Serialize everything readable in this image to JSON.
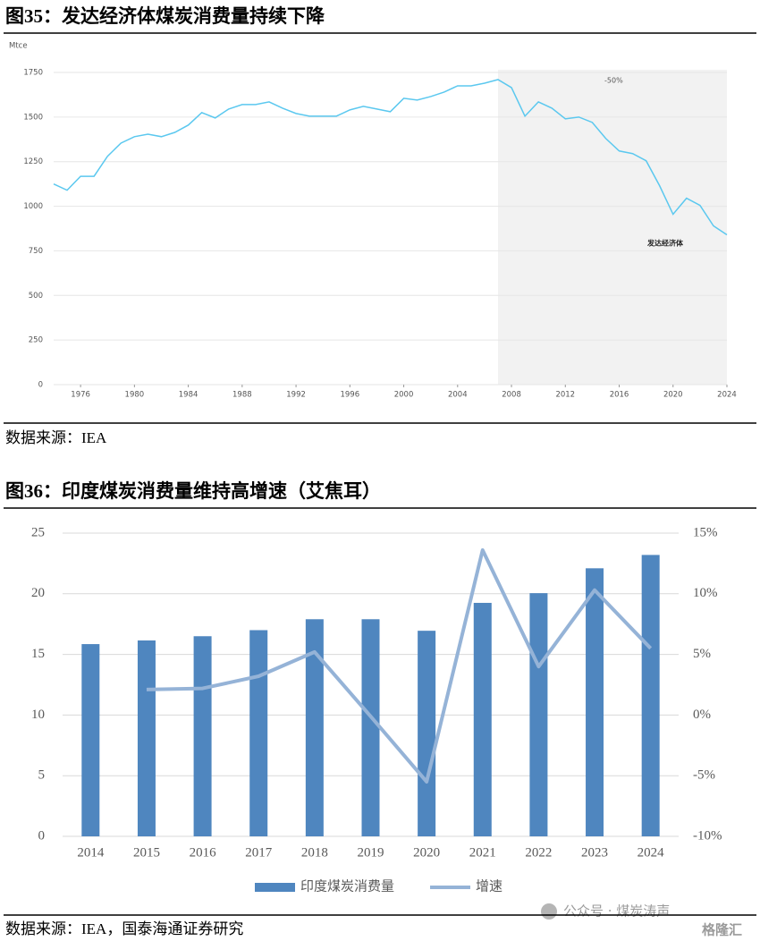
{
  "chart_data": [
    {
      "type": "line",
      "title": "图35：发达经济体煤炭消费量持续下降",
      "y_unit": "Mtce",
      "source": "数据来源：IEA",
      "annotations": [
        "-50%",
        "发达经济体"
      ],
      "color": "#5bc8ef",
      "shade_color": "#f2f2f2",
      "shaded_xrange": [
        2007,
        2024
      ],
      "grid": true,
      "x": [
        1974,
        1975,
        1976,
        1977,
        1978,
        1979,
        1980,
        1981,
        1982,
        1983,
        1984,
        1985,
        1986,
        1987,
        1988,
        1989,
        1990,
        1991,
        1992,
        1993,
        1994,
        1995,
        1996,
        1997,
        1998,
        1999,
        2000,
        2001,
        2002,
        2003,
        2004,
        2005,
        2006,
        2007,
        2008,
        2009,
        2010,
        2011,
        2012,
        2013,
        2014,
        2015,
        2016,
        2017,
        2018,
        2019,
        2020,
        2021,
        2022,
        2023,
        2024
      ],
      "values": [
        1125,
        1090,
        1168,
        1168,
        1280,
        1354,
        1390,
        1404,
        1390,
        1414,
        1455,
        1525,
        1495,
        1545,
        1570,
        1570,
        1585,
        1550,
        1520,
        1505,
        1505,
        1505,
        1540,
        1560,
        1545,
        1530,
        1605,
        1595,
        1615,
        1640,
        1675,
        1675,
        1690,
        1710,
        1665,
        1505,
        1585,
        1550,
        1490,
        1500,
        1470,
        1380,
        1310,
        1295,
        1255,
        1115,
        955,
        1045,
        1005,
        890,
        840
      ],
      "xlim": [
        1974,
        2024
      ],
      "xticks": [
        1976,
        1980,
        1984,
        1988,
        1992,
        1996,
        2000,
        2004,
        2008,
        2012,
        2016,
        2020,
        2024
      ],
      "ylim": [
        0,
        1750
      ],
      "yticks": [
        0,
        250,
        500,
        750,
        1000,
        1250,
        1500,
        1750
      ]
    },
    {
      "type": "combo",
      "title": "图36：印度煤炭消费量维持高增速（艾焦耳）",
      "source": "数据来源：IEA，国泰海通证券研究",
      "grid": true,
      "categories": [
        "2014",
        "2015",
        "2016",
        "2017",
        "2018",
        "2019",
        "2020",
        "2021",
        "2022",
        "2023",
        "2024"
      ],
      "series": [
        {
          "name": "印度煤炭消费量",
          "type": "bar",
          "color": "#4f86bf",
          "values": [
            15.85,
            16.15,
            16.5,
            17.0,
            17.9,
            17.9,
            16.95,
            19.25,
            20.05,
            22.1,
            23.2
          ]
        },
        {
          "name": "增速",
          "type": "line",
          "axis": "y2",
          "color": "#95b3d7",
          "values": [
            null,
            2.1,
            2.2,
            3.2,
            5.2,
            -0.1,
            -5.5,
            13.6,
            4.0,
            10.3,
            5.5
          ]
        }
      ],
      "ylim": [
        0,
        25
      ],
      "yticks": [
        0,
        5,
        10,
        15,
        20,
        25
      ],
      "y2lim": [
        -10,
        15
      ],
      "y2ticks": [
        {
          "value": -10,
          "label": "-10%"
        },
        {
          "value": -5,
          "label": "-5%"
        },
        {
          "value": 0,
          "label": "0%"
        },
        {
          "value": 5,
          "label": "5%"
        },
        {
          "value": 10,
          "label": "10%"
        },
        {
          "value": 15,
          "label": "15%"
        }
      ],
      "legend": "bottom"
    }
  ],
  "watermark": [
    "公众号 · 煤炭涛声",
    "格隆汇"
  ]
}
